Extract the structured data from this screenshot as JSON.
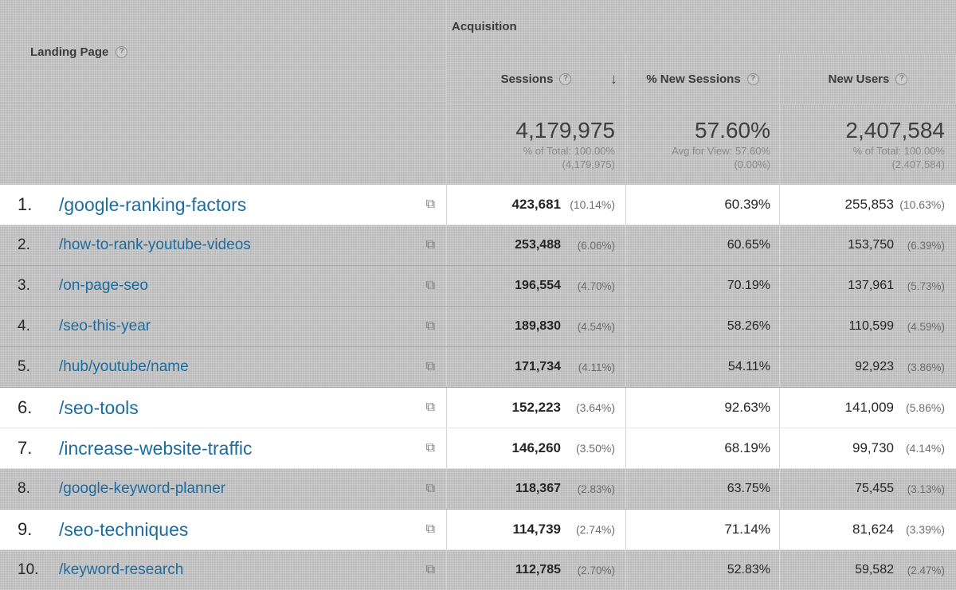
{
  "header": {
    "landing_page_label": "Landing Page",
    "acquisition_label": "Acquisition",
    "sessions_label": "Sessions",
    "new_sessions_label": "% New Sessions",
    "new_users_label": "New Users",
    "help_icon": "?",
    "sort_arrow": "↓"
  },
  "summary": {
    "sessions_total": "4,179,975",
    "sessions_sub1": "% of Total: 100.00%",
    "sessions_sub2": "(4,179,975)",
    "new_sessions_avg": "57.60%",
    "new_sessions_sub1": "Avg for View: 57.60%",
    "new_sessions_sub2": "(0.00%)",
    "new_users_total": "2,407,584",
    "new_users_sub1": "% of Total: 100.00%",
    "new_users_sub2": "(2,407,584)"
  },
  "rows": [
    {
      "num": "1.",
      "page": "/google-ranking-factors",
      "sessions": "423,681",
      "sessions_pct": "(10.14%)",
      "new_sessions": "60.39%",
      "new_users": "255,853",
      "new_users_pct": "(10.63%)",
      "highlight": true
    },
    {
      "num": "2.",
      "page": "/how-to-rank-youtube-videos",
      "sessions": "253,488",
      "sessions_pct": "(6.06%)",
      "new_sessions": "60.65%",
      "new_users": "153,750",
      "new_users_pct": "(6.39%)",
      "highlight": false
    },
    {
      "num": "3.",
      "page": "/on-page-seo",
      "sessions": "196,554",
      "sessions_pct": "(4.70%)",
      "new_sessions": "70.19%",
      "new_users": "137,961",
      "new_users_pct": "(5.73%)",
      "highlight": false
    },
    {
      "num": "4.",
      "page": "/seo-this-year",
      "sessions": "189,830",
      "sessions_pct": "(4.54%)",
      "new_sessions": "58.26%",
      "new_users": "110,599",
      "new_users_pct": "(4.59%)",
      "highlight": false
    },
    {
      "num": "5.",
      "page": "/hub/youtube/name",
      "sessions": "171,734",
      "sessions_pct": "(4.11%)",
      "new_sessions": "54.11%",
      "new_users": "92,923",
      "new_users_pct": "(3.86%)",
      "highlight": false
    },
    {
      "num": "6.",
      "page": "/seo-tools",
      "sessions": "152,223",
      "sessions_pct": "(3.64%)",
      "new_sessions": "92.63%",
      "new_users": "141,009",
      "new_users_pct": "(5.86%)",
      "highlight": true
    },
    {
      "num": "7.",
      "page": "/increase-website-traffic",
      "sessions": "146,260",
      "sessions_pct": "(3.50%)",
      "new_sessions": "68.19%",
      "new_users": "99,730",
      "new_users_pct": "(4.14%)",
      "highlight": true
    },
    {
      "num": "8.",
      "page": "/google-keyword-planner",
      "sessions": "118,367",
      "sessions_pct": "(2.83%)",
      "new_sessions": "63.75%",
      "new_users": "75,455",
      "new_users_pct": "(3.13%)",
      "highlight": false
    },
    {
      "num": "9.",
      "page": "/seo-techniques",
      "sessions": "114,739",
      "sessions_pct": "(2.74%)",
      "new_sessions": "71.14%",
      "new_users": "81,624",
      "new_users_pct": "(3.39%)",
      "highlight": true
    },
    {
      "num": "10.",
      "page": "/keyword-research",
      "sessions": "112,785",
      "sessions_pct": "(2.70%)",
      "new_sessions": "52.83%",
      "new_users": "59,582",
      "new_users_pct": "(2.47%)",
      "highlight": false
    }
  ],
  "icons": {
    "open_in_new": "⧉"
  },
  "colors": {
    "link": "#1d6c9f",
    "dimmed_bg": "#b8b8b8",
    "highlight_bg": "#ffffff"
  }
}
